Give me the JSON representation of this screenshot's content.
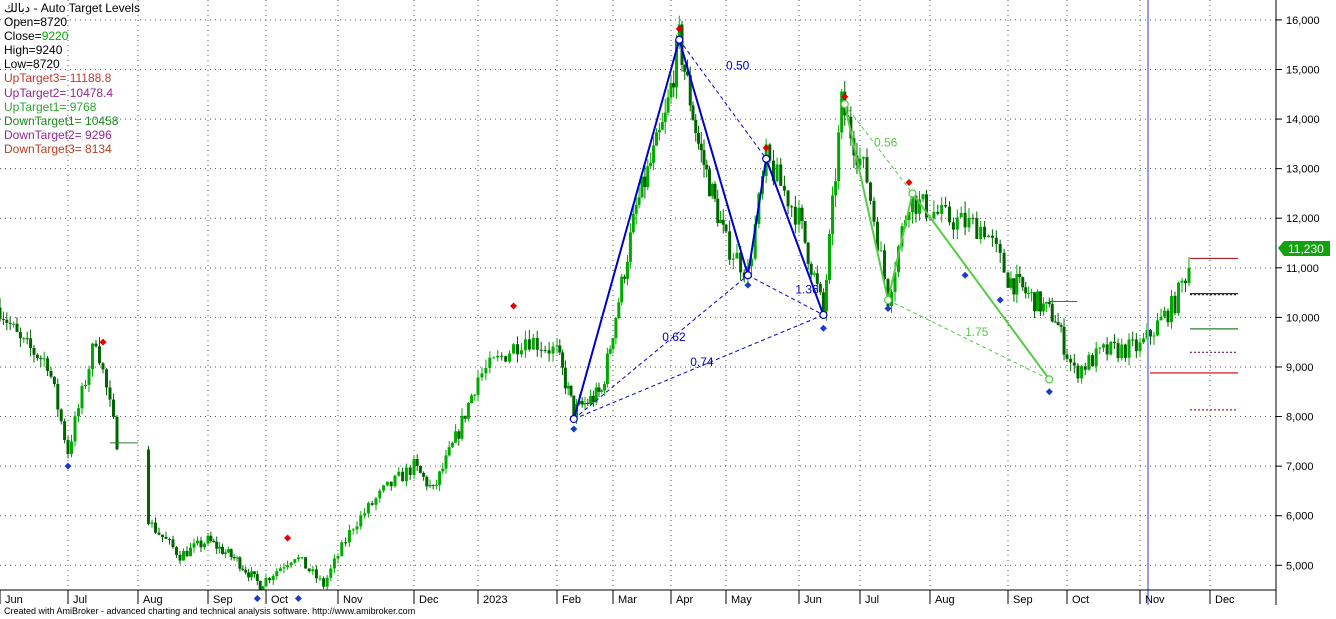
{
  "header": {
    "symbol": "دبالك",
    "title": " - Auto Target Levels",
    "open_label": "Open=",
    "open": "8720",
    "close_label": "Close=",
    "close": "9220",
    "high_label": "High=",
    "high": "9240",
    "low_label": "Low=",
    "low": "8720",
    "up3_label": "UpTarget3= ",
    "up3": "11188.8",
    "up2_label": "UpTarget2= ",
    "up2": "10478.4",
    "up1_label": "UpTarget1= ",
    "up1": "9768",
    "down1_label": "DownTarget1= ",
    "down1": "10458",
    "down2_label": "DownTarget2= ",
    "down2": "9296",
    "down3_label": "DownTarget3= ",
    "down3": "8134"
  },
  "footer": "Created with AmiBroker - advanced charting and technical analysis software. http://www.amibroker.com",
  "colors": {
    "candle_up": "#00aa00",
    "candle_down": "#006400",
    "blue_pattern": "#0000cc",
    "green_pattern": "#55cc44",
    "up_target": "#b22222",
    "down_target": "#2e7d32",
    "price_badge": "#13a10e",
    "cursor_line": "#9999ee"
  },
  "chart_data": {
    "type": "candlestick",
    "title": "دبالك - Auto Target Levels",
    "ylim": [
      4300,
      16200
    ],
    "yticks": [
      5000,
      6000,
      7000,
      8000,
      9000,
      10000,
      11000,
      12000,
      13000,
      14000,
      15000,
      16000
    ],
    "ytick_labels": [
      "5,000",
      "6,000",
      "7,000",
      "8,000",
      "9,000",
      "10,000",
      "11,000",
      "12,000",
      "13,000",
      "14,000",
      "15,000",
      "16,000"
    ],
    "x_labels": [
      "Jun",
      "Jul",
      "Aug",
      "Sep",
      "Oct",
      "Nov",
      "Dec",
      "2023",
      "Feb",
      "Mar",
      "Apr",
      "May",
      "Jun",
      "Jul",
      "Aug",
      "Sep",
      "Oct",
      "Nov",
      "Dec"
    ],
    "last_price_label": "11,230",
    "last_price": 11230,
    "grid": true,
    "close_path": [
      {
        "t": 0,
        "v": 10200
      },
      {
        "t": 0.3,
        "v": 9500
      },
      {
        "t": 0.7,
        "v": 9100
      },
      {
        "t": 1.0,
        "v": 7300
      },
      {
        "t": 1.4,
        "v": 9600
      },
      {
        "t": 1.7,
        "v": 7500
      },
      {
        "t": 2.2,
        "v": 5800
      },
      {
        "t": 2.6,
        "v": 5200
      },
      {
        "t": 3.0,
        "v": 5500
      },
      {
        "t": 3.5,
        "v": 5100
      },
      {
        "t": 3.9,
        "v": 4600
      },
      {
        "t": 4.4,
        "v": 5200
      },
      {
        "t": 4.8,
        "v": 4600
      },
      {
        "t": 5.2,
        "v": 5800
      },
      {
        "t": 5.6,
        "v": 6500
      },
      {
        "t": 6.0,
        "v": 7000
      },
      {
        "t": 6.3,
        "v": 6500
      },
      {
        "t": 6.7,
        "v": 7700
      },
      {
        "t": 7.0,
        "v": 8800
      },
      {
        "t": 7.6,
        "v": 9600
      },
      {
        "t": 8.0,
        "v": 9300
      },
      {
        "t": 8.3,
        "v": 8100
      },
      {
        "t": 8.8,
        "v": 8500
      },
      {
        "t": 9.4,
        "v": 12200
      },
      {
        "t": 9.9,
        "v": 14000
      },
      {
        "t": 10.15,
        "v": 15600
      },
      {
        "t": 10.5,
        "v": 13500
      },
      {
        "t": 11.0,
        "v": 11500
      },
      {
        "t": 11.3,
        "v": 10900
      },
      {
        "t": 11.55,
        "v": 13200
      },
      {
        "t": 12.0,
        "v": 12000
      },
      {
        "t": 12.4,
        "v": 10100
      },
      {
        "t": 12.7,
        "v": 14300
      },
      {
        "t": 13.1,
        "v": 12800
      },
      {
        "t": 13.4,
        "v": 10400
      },
      {
        "t": 13.7,
        "v": 12400
      },
      {
        "t": 14.2,
        "v": 12000
      },
      {
        "t": 14.7,
        "v": 11800
      },
      {
        "t": 15.0,
        "v": 10800
      },
      {
        "t": 15.4,
        "v": 10400
      },
      {
        "t": 15.8,
        "v": 10000
      },
      {
        "t": 16.1,
        "v": 8900
      },
      {
        "t": 16.5,
        "v": 9300
      },
      {
        "t": 17.0,
        "v": 9400
      },
      {
        "t": 17.5,
        "v": 10300
      },
      {
        "t": 17.75,
        "v": 11230
      }
    ],
    "patterns": [
      {
        "name": "blue",
        "points": [
          {
            "t": 8.3,
            "v": 7950
          },
          {
            "t": 10.15,
            "v": 15600
          },
          {
            "t": 11.3,
            "v": 10850
          },
          {
            "t": 11.55,
            "v": 13200
          },
          {
            "t": 12.4,
            "v": 10050
          }
        ],
        "dashed": [
          [
            [
              10.15,
              15600
            ],
            [
              11.55,
              13200
            ]
          ],
          [
            [
              8.3,
              7950
            ],
            [
              11.3,
              10850
            ]
          ],
          [
            [
              11.3,
              10850
            ],
            [
              12.4,
              10050
            ]
          ],
          [
            [
              8.3,
              7950
            ],
            [
              12.4,
              10050
            ]
          ]
        ],
        "ratios": [
          {
            "label": "0.50",
            "t": 11.0,
            "v": 15000
          },
          {
            "label": "0.62",
            "t": 9.85,
            "v": 9520
          },
          {
            "label": "1.36",
            "t": 11.95,
            "v": 10480
          },
          {
            "label": "0.74",
            "t": 10.35,
            "v": 9020
          }
        ]
      },
      {
        "name": "green",
        "points": [
          {
            "t": 12.75,
            "v": 14300
          },
          {
            "t": 13.4,
            "v": 10350
          },
          {
            "t": 13.75,
            "v": 12500
          },
          {
            "t": 15.7,
            "v": 8750
          }
        ],
        "dashed": [
          [
            [
              12.75,
              14300
            ],
            [
              13.75,
              12500
            ]
          ],
          [
            [
              13.4,
              10350
            ],
            [
              15.7,
              8750
            ]
          ]
        ],
        "ratios": [
          {
            "label": "0.56",
            "t": 13.2,
            "v": 13450
          },
          {
            "label": "1.75",
            "t": 14.45,
            "v": 9620
          }
        ]
      }
    ],
    "markers_high": [
      {
        "t": 1.5,
        "v": 9500
      },
      {
        "t": 4.3,
        "v": 5550
      },
      {
        "t": 7.45,
        "v": 10230
      },
      {
        "t": 10.15,
        "v": 15820
      },
      {
        "t": 11.55,
        "v": 13420
      },
      {
        "t": 12.75,
        "v": 14450
      },
      {
        "t": 13.7,
        "v": 12720
      }
    ],
    "markers_low": [
      {
        "t": 1.0,
        "v": 7000
      },
      {
        "t": 3.85,
        "v": 4330
      },
      {
        "t": 4.45,
        "v": 4330
      },
      {
        "t": 8.3,
        "v": 7750
      },
      {
        "t": 11.3,
        "v": 10650
      },
      {
        "t": 12.4,
        "v": 9780
      },
      {
        "t": 13.4,
        "v": 10180
      },
      {
        "t": 14.45,
        "v": 10850
      },
      {
        "t": 14.9,
        "v": 10350
      },
      {
        "t": 15.7,
        "v": 8500
      }
    ],
    "target_lines": [
      {
        "name": "UpTarget3",
        "value": 11188.8,
        "style": "solid",
        "color": "#b22222"
      },
      {
        "name": "UpTarget2",
        "value": 10478.4,
        "style": "solid",
        "color": "#1a1a1a"
      },
      {
        "name": "UpTarget1",
        "value": 9768,
        "style": "solid",
        "color": "#2e7d32"
      },
      {
        "name": "Base",
        "value": 8880,
        "style": "solid",
        "color": "#cc0000"
      },
      {
        "name": "DownTarget1",
        "value": 10458,
        "style": "dotted",
        "color": "#1a1a1a"
      },
      {
        "name": "DownTarget2",
        "value": 9296,
        "style": "dotted",
        "color": "#6a1b5a"
      },
      {
        "name": "DownTarget3",
        "value": 8134,
        "style": "dotted",
        "color": "#b22222"
      }
    ],
    "side_levels": [
      {
        "t": 1.6,
        "v": 7470
      },
      {
        "t": 15.7,
        "v": 10320
      }
    ]
  }
}
